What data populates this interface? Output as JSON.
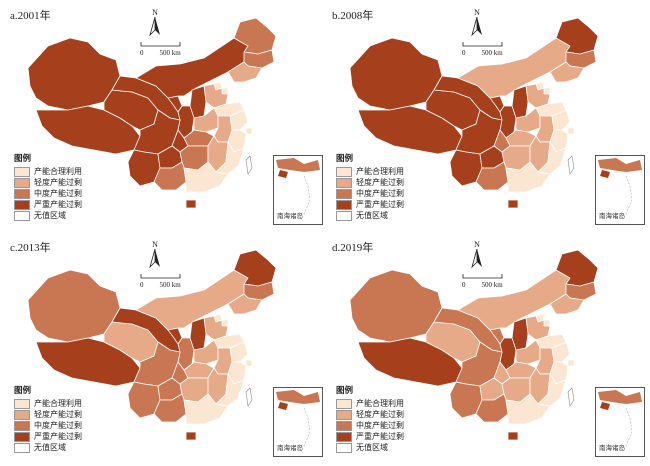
{
  "colors": {
    "reasonable": "#fbe6d2",
    "light": "#e6aa88",
    "moderate": "#c97652",
    "severe": "#a53f1c",
    "no_data": "#ffffff",
    "border": "#ffffff"
  },
  "legend": {
    "title": "图例",
    "items": [
      {
        "key": "reasonable",
        "label": "产能合理利用"
      },
      {
        "key": "light",
        "label": "轻度产能过剩"
      },
      {
        "key": "moderate",
        "label": "中度产能过剩"
      },
      {
        "key": "severe",
        "label": "严重产能过剩"
      },
      {
        "key": "no_data",
        "label": "无值区域"
      }
    ]
  },
  "north_letter": "N",
  "scale": {
    "zero": "0",
    "value": "500 km"
  },
  "inset_label": "南海诸岛",
  "panels": [
    {
      "id": "a",
      "title": "a.2001年",
      "provinces": {
        "新疆": "severe",
        "西藏": "severe",
        "青海": "severe",
        "甘肃": "severe",
        "宁夏": "severe",
        "内蒙古": "severe",
        "黑龙江": "moderate",
        "吉林": "moderate",
        "辽宁": "light",
        "北京": "reasonable",
        "天津": "reasonable",
        "河北": "light",
        "山西": "severe",
        "山东": "reasonable",
        "陕西": "severe",
        "河南": "light",
        "四川": "severe",
        "重庆": "severe",
        "湖北": "moderate",
        "安徽": "light",
        "江苏": "reasonable",
        "上海": "reasonable",
        "浙江": "reasonable",
        "云南": "severe",
        "贵州": "severe",
        "湖南": "moderate",
        "江西": "light",
        "福建": "reasonable",
        "广西": "moderate",
        "广东": "reasonable",
        "海南": "severe",
        "台湾": "no_data"
      }
    },
    {
      "id": "b",
      "title": "b.2008年",
      "provinces": {
        "新疆": "severe",
        "西藏": "severe",
        "青海": "severe",
        "甘肃": "severe",
        "宁夏": "severe",
        "内蒙古": "light",
        "黑龙江": "severe",
        "吉林": "moderate",
        "辽宁": "light",
        "北京": "reasonable",
        "天津": "reasonable",
        "河北": "light",
        "山西": "severe",
        "山东": "reasonable",
        "陕西": "severe",
        "河南": "light",
        "四川": "severe",
        "重庆": "moderate",
        "湖北": "light",
        "安徽": "light",
        "江苏": "reasonable",
        "上海": "reasonable",
        "浙江": "reasonable",
        "云南": "severe",
        "贵州": "severe",
        "湖南": "light",
        "江西": "light",
        "福建": "reasonable",
        "广西": "moderate",
        "广东": "reasonable",
        "海南": "severe",
        "台湾": "no_data"
      }
    },
    {
      "id": "c",
      "title": "c.2013年",
      "provinces": {
        "新疆": "moderate",
        "西藏": "severe",
        "青海": "light",
        "甘肃": "severe",
        "宁夏": "severe",
        "内蒙古": "light",
        "黑龙江": "severe",
        "吉林": "moderate",
        "辽宁": "light",
        "北京": "reasonable",
        "天津": "reasonable",
        "河北": "light",
        "山西": "severe",
        "山东": "reasonable",
        "陕西": "moderate",
        "河南": "light",
        "四川": "moderate",
        "重庆": "moderate",
        "湖北": "light",
        "安徽": "light",
        "江苏": "reasonable",
        "上海": "reasonable",
        "浙江": "reasonable",
        "云南": "moderate",
        "贵州": "moderate",
        "湖南": "light",
        "江西": "light",
        "福建": "reasonable",
        "广西": "moderate",
        "广东": "reasonable",
        "海南": "severe",
        "台湾": "no_data"
      }
    },
    {
      "id": "d",
      "title": "d.2019年",
      "provinces": {
        "新疆": "moderate",
        "西藏": "severe",
        "青海": "light",
        "甘肃": "moderate",
        "宁夏": "moderate",
        "内蒙古": "light",
        "黑龙江": "severe",
        "吉林": "moderate",
        "辽宁": "light",
        "北京": "reasonable",
        "天津": "reasonable",
        "河北": "light",
        "山西": "severe",
        "山东": "reasonable",
        "陕西": "severe",
        "河南": "light",
        "四川": "moderate",
        "重庆": "light",
        "湖北": "light",
        "安徽": "light",
        "江苏": "reasonable",
        "上海": "reasonable",
        "浙江": "reasonable",
        "云南": "moderate",
        "贵州": "light",
        "湖南": "light",
        "江西": "light",
        "福建": "reasonable",
        "广西": "moderate",
        "广东": "reasonable",
        "海南": "severe",
        "台湾": "no_data"
      }
    }
  ]
}
